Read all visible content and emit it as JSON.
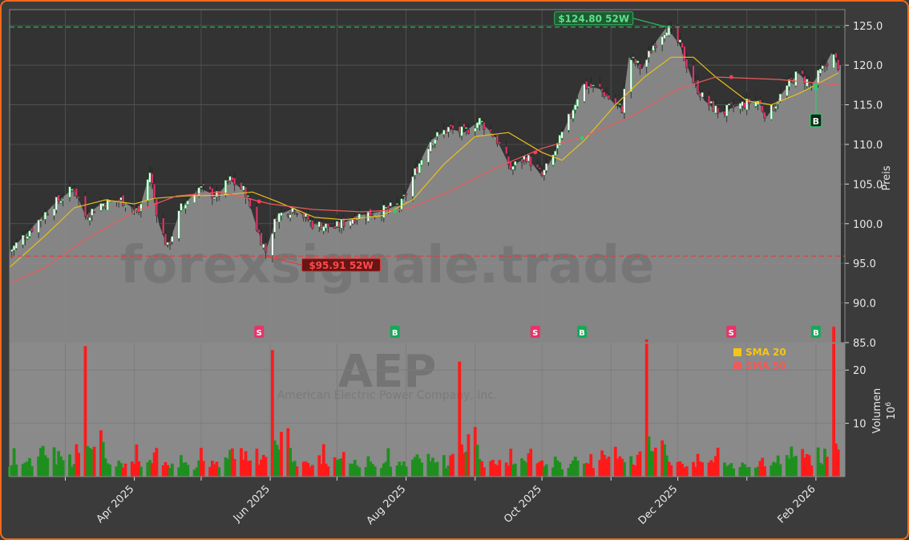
{
  "chart_data": {
    "type": "candlestick",
    "symbol": "AEP",
    "company": "American Electric Power Company, Inc.",
    "watermark": "forexsignale.trade",
    "price_axis": {
      "label": "Preis",
      "ylim": [
        85,
        127
      ],
      "ticks": [
        85,
        90,
        95,
        100,
        105,
        110,
        115,
        120,
        125
      ]
    },
    "volume_axis": {
      "label": "Volumen",
      "unit_label": "10^6",
      "ylim": [
        0,
        25
      ],
      "ticks": [
        10,
        20
      ]
    },
    "x_axis": {
      "xlim": [
        "2025-02-04",
        "2026-02-14"
      ],
      "ticks": [
        {
          "date": "2025-04-01",
          "label": "Apr 2025"
        },
        {
          "date": "2025-06-01",
          "label": "Jun 2025"
        },
        {
          "date": "2025-08-01",
          "label": "Aug 2025"
        },
        {
          "date": "2025-10-01",
          "label": "Oct 2025"
        },
        {
          "date": "2025-12-01",
          "label": "Dec 2025"
        },
        {
          "date": "2026-02-01",
          "label": "Feb 2026"
        }
      ],
      "minor_ticks": [
        "2025-03-01",
        "2025-05-01",
        "2025-07-01",
        "2025-09-01",
        "2025-11-01",
        "2026-01-01"
      ]
    },
    "close_series": {
      "name": "Close",
      "points": [
        [
          "2025-02-04",
          96.5
        ],
        [
          "2025-02-14",
          99.5
        ],
        [
          "2025-02-24",
          102.5
        ],
        [
          "2025-03-05",
          104.5
        ],
        [
          "2025-03-10",
          101.0
        ],
        [
          "2025-03-17",
          102.5
        ],
        [
          "2025-03-26",
          103.0
        ],
        [
          "2025-04-03",
          101.5
        ],
        [
          "2025-04-08",
          106.5
        ],
        [
          "2025-04-12",
          100.0
        ],
        [
          "2025-04-16",
          97.0
        ],
        [
          "2025-04-22",
          102.0
        ],
        [
          "2025-04-30",
          104.5
        ],
        [
          "2025-05-08",
          103.5
        ],
        [
          "2025-05-14",
          105.5
        ],
        [
          "2025-05-21",
          104.0
        ],
        [
          "2025-05-26",
          99.5
        ],
        [
          "2025-05-30",
          96.5
        ],
        [
          "2025-06-04",
          101.0
        ],
        [
          "2025-06-12",
          102.0
        ],
        [
          "2025-06-20",
          100.0
        ],
        [
          "2025-06-30",
          99.5
        ],
        [
          "2025-07-10",
          101.0
        ],
        [
          "2025-07-20",
          101.5
        ],
        [
          "2025-07-30",
          102.5
        ],
        [
          "2025-08-05",
          106.5
        ],
        [
          "2025-08-12",
          110.5
        ],
        [
          "2025-08-20",
          112.0
        ],
        [
          "2025-08-27",
          111.5
        ],
        [
          "2025-09-03",
          113.0
        ],
        [
          "2025-09-10",
          111.0
        ],
        [
          "2025-09-17",
          107.0
        ],
        [
          "2025-09-24",
          108.5
        ],
        [
          "2025-10-01",
          106.0
        ],
        [
          "2025-10-06",
          108.5
        ],
        [
          "2025-10-12",
          112.5
        ],
        [
          "2025-10-19",
          117.5
        ],
        [
          "2025-10-27",
          117.0
        ],
        [
          "2025-11-03",
          115.0
        ],
        [
          "2025-11-06",
          114.5
        ],
        [
          "2025-11-09",
          121.0
        ],
        [
          "2025-11-15",
          119.5
        ],
        [
          "2025-11-20",
          122.5
        ],
        [
          "2025-11-26",
          124.8
        ],
        [
          "2025-12-02",
          122.5
        ],
        [
          "2025-12-07",
          118.5
        ],
        [
          "2025-12-13",
          115.5
        ],
        [
          "2025-12-20",
          114.0
        ],
        [
          "2025-12-29",
          115.0
        ],
        [
          "2026-01-06",
          115.5
        ],
        [
          "2026-01-10",
          113.5
        ],
        [
          "2026-01-17",
          116.5
        ],
        [
          "2026-01-24",
          119.0
        ],
        [
          "2026-01-30",
          117.5
        ],
        [
          "2026-02-04",
          119.5
        ],
        [
          "2026-02-08",
          121.5
        ],
        [
          "2026-02-11",
          120.0
        ]
      ]
    },
    "overlay_series": [
      {
        "name": "SMA 20",
        "color": "#e8c11a",
        "points": [
          [
            "2025-02-04",
            94.5
          ],
          [
            "2025-02-20",
            98.5
          ],
          [
            "2025-03-05",
            102.0
          ],
          [
            "2025-03-19",
            103.0
          ],
          [
            "2025-04-01",
            102.5
          ],
          [
            "2025-04-10",
            103.2
          ],
          [
            "2025-04-24",
            103.5
          ],
          [
            "2025-05-11",
            103.6
          ],
          [
            "2025-05-24",
            104.0
          ],
          [
            "2025-06-04",
            102.8
          ],
          [
            "2025-06-21",
            100.8
          ],
          [
            "2025-07-04",
            100.5
          ],
          [
            "2025-07-21",
            101.0
          ],
          [
            "2025-08-04",
            103.0
          ],
          [
            "2025-08-18",
            107.5
          ],
          [
            "2025-09-01",
            111.0
          ],
          [
            "2025-09-16",
            111.5
          ],
          [
            "2025-10-01",
            109.0
          ],
          [
            "2025-10-10",
            108.0
          ],
          [
            "2025-10-20",
            110.5
          ],
          [
            "2025-11-03",
            115.0
          ],
          [
            "2025-11-16",
            118.5
          ],
          [
            "2025-11-28",
            121.0
          ],
          [
            "2025-12-08",
            121.0
          ],
          [
            "2025-12-18",
            118.5
          ],
          [
            "2026-01-01",
            115.5
          ],
          [
            "2026-01-12",
            115.0
          ],
          [
            "2026-01-25",
            116.5
          ],
          [
            "2026-02-11",
            119.0
          ]
        ]
      },
      {
        "name": "SMA 50",
        "color": "#ee5b5b",
        "points": [
          [
            "2025-02-04",
            92.5
          ],
          [
            "2025-02-20",
            94.5
          ],
          [
            "2025-03-10",
            98.0
          ],
          [
            "2025-04-01",
            101.5
          ],
          [
            "2025-04-20",
            103.5
          ],
          [
            "2025-05-10",
            104.0
          ],
          [
            "2025-06-01",
            102.5
          ],
          [
            "2025-06-20",
            101.8
          ],
          [
            "2025-07-12",
            101.5
          ],
          [
            "2025-08-01",
            101.8
          ],
          [
            "2025-08-20",
            104.0
          ],
          [
            "2025-09-10",
            107.0
          ],
          [
            "2025-10-01",
            109.5
          ],
          [
            "2025-10-20",
            111.0
          ],
          [
            "2025-11-10",
            113.5
          ],
          [
            "2025-12-01",
            117.0
          ],
          [
            "2025-12-18",
            118.5
          ],
          [
            "2026-01-15",
            118.2
          ],
          [
            "2026-02-11",
            117.5
          ]
        ]
      }
    ],
    "reference_lines": [
      {
        "label": "$124.80 52W",
        "value": 124.8,
        "date": "2025-11-26",
        "color": "#2fb35a"
      },
      {
        "label": "$95.91 52W",
        "value": 95.91,
        "date": "2025-05-30",
        "color": "#e33b3b"
      }
    ],
    "signals": [
      {
        "type": "S",
        "date": "2025-05-27",
        "price": 102.8
      },
      {
        "type": "B",
        "date": "2025-07-27",
        "price": 101.6
      },
      {
        "type": "S",
        "date": "2025-09-28",
        "price": 109.0
      },
      {
        "type": "B",
        "date": "2025-10-19",
        "price": 110.8
      },
      {
        "type": "S",
        "date": "2025-12-25",
        "price": 118.5
      },
      {
        "type": "B",
        "date": "2026-02-01",
        "price": 117.5
      }
    ],
    "latest_signal": {
      "type": "B",
      "date": "2026-02-01",
      "price": 117.5
    },
    "legend": [
      {
        "name": "SMA 20",
        "color": "#f5c518"
      },
      {
        "name": "SMA 50",
        "color": "#ee5b5b"
      }
    ],
    "volume_pattern": [
      2.0,
      2.5,
      4.4,
      2.4,
      2.2,
      3.0,
      2.3,
      3.6,
      2.1,
      3.8,
      4.4,
      5.2,
      4.3,
      3.3,
      5.0,
      3.0,
      4.0,
      3.4,
      2.6,
      5.0,
      2.1,
      2.6,
      5.2,
      4.2,
      24.5,
      6.2,
      5.9,
      4.6,
      7.0,
      7.8,
      6.5,
      3.4,
      2.8,
      2.2,
      2.5,
      3.2,
      2.8,
      2.2,
      2.5,
      3.4,
      2.0,
      5.0,
      2.8,
      2.2,
      3.2,
      2.6,
      3.0,
      4.2,
      5.2,
      2.3,
      2.4,
      2.8,
      2.1,
      2.0,
      1.6,
      3.5,
      2.5,
      2.2,
      1.8,
      1.6
    ],
    "volume_red": [
      23,
      24,
      28,
      29,
      41,
      48
    ]
  }
}
